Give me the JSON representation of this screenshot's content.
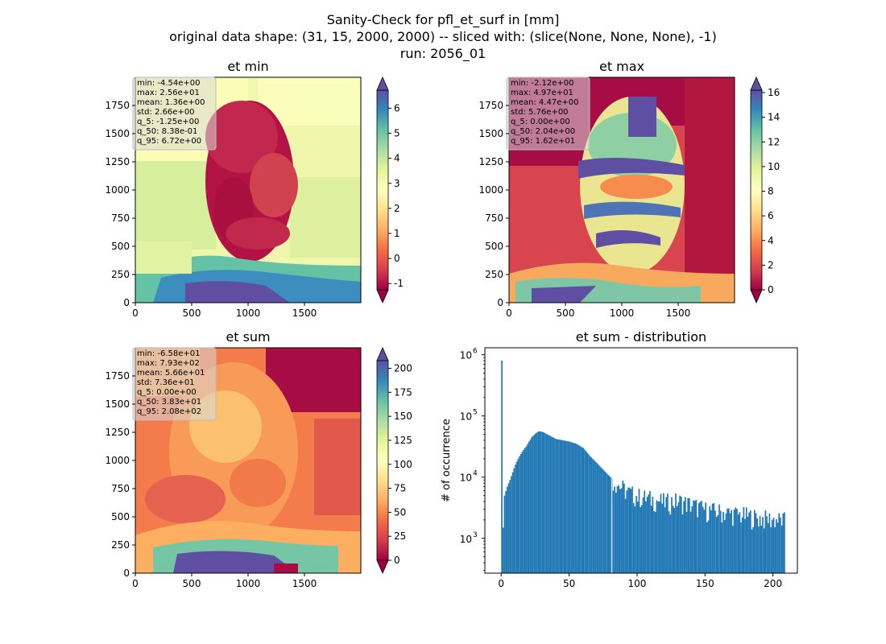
{
  "figure": {
    "title_lines": [
      "Sanity-Check for pfl_et_surf in [mm]",
      "original data shape: (31, 15, 2000, 2000) -- sliced with: (slice(None, None, None), -1)",
      "run: 2056_01"
    ]
  },
  "panels": {
    "et_min": {
      "title": "et min",
      "stats": [
        "min: -4.54e+00",
        "max: 2.56e+01",
        "mean: 1.36e+00",
        "std: 2.66e+00",
        "q_5: -1.25e+00",
        "q_50: 8.38e-01",
        "q_95: 6.72e+00"
      ],
      "cbar_ticks": [
        "-1",
        "0",
        "1",
        "2",
        "3",
        "4",
        "5",
        "6"
      ]
    },
    "et_max": {
      "title": "et max",
      "stats": [
        "min: -2.12e+00",
        "max: 4.97e+01",
        "mean: 4.47e+00",
        "std: 5.76e+00",
        "q_5: 0.00e+00",
        "q_50: 2.04e+00",
        "q_95: 1.62e+01"
      ],
      "cbar_ticks": [
        "0",
        "2",
        "4",
        "6",
        "8",
        "10",
        "12",
        "14",
        "16"
      ]
    },
    "et_sum": {
      "title": "et sum",
      "stats": [
        "min: -6.58e+01",
        "max: 7.93e+02",
        "mean: 5.66e+01",
        "std: 7.36e+01",
        "q_5: 0.00e+00",
        "q_50: 3.83e+01",
        "q_95: 2.08e+02"
      ],
      "cbar_ticks": [
        "0",
        "25",
        "50",
        "75",
        "100",
        "125",
        "150",
        "175",
        "200"
      ]
    },
    "dist": {
      "title": "et sum - distribution",
      "ylabel": "# of occurrence"
    }
  },
  "map_axis": {
    "x_ticks": [
      "0",
      "500",
      "1000",
      "1500"
    ],
    "y_ticks": [
      "0",
      "250",
      "500",
      "750",
      "1000",
      "1250",
      "1500",
      "1750"
    ]
  },
  "chart_data": [
    {
      "type": "heatmap",
      "title": "et min",
      "xlim": [
        0,
        2000
      ],
      "ylim": [
        0,
        2000
      ],
      "colormap": "Spectral",
      "clim": [
        -1.25,
        6.72
      ],
      "cbar_extend": "both"
    },
    {
      "type": "heatmap",
      "title": "et max",
      "xlim": [
        0,
        2000
      ],
      "ylim": [
        0,
        2000
      ],
      "colormap": "Spectral",
      "clim": [
        0,
        16.2
      ],
      "cbar_extend": "both"
    },
    {
      "type": "heatmap",
      "title": "et sum",
      "xlim": [
        0,
        2000
      ],
      "ylim": [
        0,
        2000
      ],
      "colormap": "Spectral",
      "clim": [
        0,
        208
      ],
      "cbar_extend": "both"
    },
    {
      "type": "bar",
      "title": "et sum - distribution",
      "ylabel": "# of occurrence",
      "yscale": "log",
      "xlim": [
        -12,
        218
      ],
      "ylim": [
        270,
        1300000
      ],
      "x_ticks": [
        0,
        50,
        100,
        150,
        200
      ],
      "y_ticks": [
        1000,
        10000,
        100000,
        1000000
      ],
      "y_tick_labels": [
        "10^3",
        "10^4",
        "10^5",
        "10^6"
      ],
      "color": "#1f77b4",
      "bin_width": 1,
      "anchors_x": [
        0,
        1,
        2,
        4,
        6,
        8,
        10,
        12,
        15,
        18,
        20,
        22,
        25,
        27,
        30,
        35,
        40,
        45,
        50,
        55,
        60,
        65,
        70,
        75,
        80,
        82,
        85,
        90,
        95,
        100,
        110,
        120,
        130,
        140,
        150,
        160,
        170,
        180,
        190,
        200,
        208
      ],
      "anchors_y": [
        800000,
        1500,
        5000,
        7000,
        9000,
        12000,
        16000,
        20000,
        26000,
        32000,
        38000,
        45000,
        52000,
        56000,
        55000,
        48000,
        42000,
        40000,
        38000,
        35000,
        30000,
        22000,
        17000,
        13000,
        10000,
        9000,
        8000,
        6500,
        5500,
        5000,
        4500,
        4000,
        4200,
        3600,
        3000,
        2800,
        2600,
        2400,
        2200,
        2100,
        2000
      ]
    }
  ]
}
